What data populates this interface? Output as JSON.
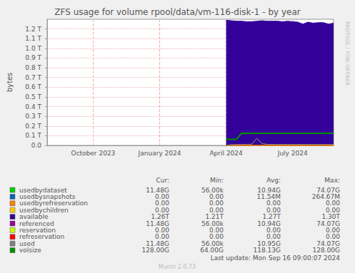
{
  "chart_data": {
    "type": "line",
    "title": "ZFS usage for volume rpool/data/vm-116-disk-1 - by year",
    "y_label": "bytes",
    "side_text": "RRDTOOL / TOBI OETIKER",
    "footer": "Last update: Mon Sep 16 09:00:07 2024",
    "version_text": "Munin 2.0.73",
    "stats_header": [
      "Cur:",
      "Min:",
      "Avg:",
      "Max:"
    ],
    "grid": true,
    "categories": [
      null,
      null,
      null,
      null,
      null,
      null,
      null,
      null,
      null,
      "October 2023",
      null,
      null,
      null,
      null,
      null,
      null,
      null,
      null,
      null,
      null,
      null,
      null,
      "January 2024",
      null,
      null,
      null,
      null,
      null,
      null,
      null,
      null,
      null,
      null,
      null,
      null,
      "April 2024",
      null,
      null,
      null,
      null,
      null,
      null,
      null,
      null,
      null,
      null,
      null,
      null,
      "July 2024",
      null,
      null,
      null,
      null,
      null,
      null,
      null,
      null
    ],
    "ylim": [
      0,
      1.3
    ],
    "yticks": [
      {
        "value": 0,
        "label": "0.0"
      },
      {
        "value": 0.1,
        "label": "0.1 T"
      },
      {
        "value": 0.2,
        "label": "0.2 T"
      },
      {
        "value": 0.3,
        "label": "0.3 T"
      },
      {
        "value": 0.4,
        "label": "0.4 T"
      },
      {
        "value": 0.5,
        "label": "0.5 T"
      },
      {
        "value": 0.6,
        "label": "0.6 T"
      },
      {
        "value": 0.7,
        "label": "0.7 T"
      },
      {
        "value": 0.8,
        "label": "0.8 T"
      },
      {
        "value": 0.9,
        "label": "0.9 T"
      },
      {
        "value": 1.0,
        "label": "1.0 T"
      },
      {
        "value": 1.1,
        "label": "1.1 T"
      },
      {
        "value": 1.2,
        "label": "1.2 T"
      }
    ],
    "series": [
      {
        "name": "usedbydataset",
        "color": "#00cc00",
        "type": "line",
        "stats": [
          "11.48G",
          "56.00k",
          "10.94G",
          "74.07G"
        ],
        "values": [
          null,
          null,
          null,
          null,
          null,
          null,
          null,
          null,
          null,
          null,
          null,
          null,
          null,
          null,
          null,
          null,
          null,
          null,
          null,
          null,
          null,
          null,
          null,
          null,
          null,
          null,
          null,
          null,
          null,
          null,
          null,
          null,
          null,
          null,
          null,
          0.0001,
          0.008,
          0.01,
          0.011,
          0.011,
          0.012,
          0.072,
          0.02,
          0.011,
          0.011,
          0.011,
          0.011,
          0.011,
          0.011,
          0.011,
          0.011,
          0.011,
          0.011,
          0.011,
          0.011,
          0.011,
          0.0112
        ]
      },
      {
        "name": "usedbysnapshots",
        "color": "#0066b3",
        "type": "line",
        "stats": [
          "0.00",
          "0.00",
          "11.54M",
          "264.67M"
        ],
        "values": [
          null,
          null,
          null,
          null,
          null,
          null,
          null,
          null,
          null,
          null,
          null,
          null,
          null,
          null,
          null,
          null,
          null,
          null,
          null,
          null,
          null,
          null,
          null,
          null,
          null,
          null,
          null,
          null,
          null,
          null,
          null,
          null,
          null,
          null,
          null,
          0,
          0,
          0,
          0,
          0,
          0,
          0.0003,
          0,
          0,
          0,
          0,
          0,
          0,
          0,
          0,
          0,
          0,
          0,
          0,
          0,
          0,
          0
        ]
      },
      {
        "name": "usedbyrefreservation",
        "color": "#ff8000",
        "type": "line",
        "stats": [
          "0.00",
          "0.00",
          "0.00",
          "0.00"
        ],
        "values": [
          null,
          null,
          null,
          null,
          null,
          null,
          null,
          null,
          null,
          null,
          null,
          null,
          null,
          null,
          null,
          null,
          null,
          null,
          null,
          null,
          null,
          null,
          null,
          null,
          null,
          null,
          null,
          null,
          null,
          null,
          null,
          null,
          null,
          null,
          null,
          0,
          0,
          0,
          0,
          0,
          0,
          0,
          0,
          0,
          0,
          0,
          0,
          0,
          0,
          0,
          0,
          0,
          0,
          0,
          0,
          0,
          0
        ]
      },
      {
        "name": "usedbychildren",
        "color": "#ffcc00",
        "type": "line",
        "stats": [
          "0.00",
          "0.00",
          "0.00",
          "0.00"
        ],
        "values": [
          null,
          null,
          null,
          null,
          null,
          null,
          null,
          null,
          null,
          null,
          null,
          null,
          null,
          null,
          null,
          null,
          null,
          null,
          null,
          null,
          null,
          null,
          null,
          null,
          null,
          null,
          null,
          null,
          null,
          null,
          null,
          null,
          null,
          null,
          null,
          0,
          0,
          0,
          0,
          0,
          0,
          0,
          0,
          0,
          0,
          0,
          0,
          0,
          0,
          0,
          0,
          0,
          0,
          0,
          0,
          0,
          0
        ]
      },
      {
        "name": "available",
        "color": "#330099",
        "type": "area",
        "stats": [
          "1.26T",
          "1.21T",
          "1.27T",
          "1.30T"
        ],
        "values": [
          null,
          null,
          null,
          null,
          null,
          null,
          null,
          null,
          null,
          null,
          null,
          null,
          null,
          null,
          null,
          null,
          null,
          null,
          null,
          null,
          null,
          null,
          null,
          null,
          null,
          null,
          null,
          null,
          null,
          null,
          null,
          null,
          null,
          null,
          null,
          1.29,
          1.285,
          1.28,
          1.28,
          1.275,
          1.275,
          1.28,
          1.285,
          1.28,
          1.28,
          1.28,
          1.275,
          1.28,
          1.275,
          1.27,
          1.25,
          1.27,
          1.26,
          1.265,
          1.265,
          1.25,
          1.26
        ]
      },
      {
        "name": "referenced",
        "color": "#990099",
        "type": "line",
        "stats": [
          "11.48G",
          "56.00k",
          "10.94G",
          "74.07G"
        ],
        "values": [
          null,
          null,
          null,
          null,
          null,
          null,
          null,
          null,
          null,
          null,
          null,
          null,
          null,
          null,
          null,
          null,
          null,
          null,
          null,
          null,
          null,
          null,
          null,
          null,
          null,
          null,
          null,
          null,
          null,
          null,
          null,
          null,
          null,
          null,
          null,
          0.0001,
          0.008,
          0.01,
          0.011,
          0.011,
          0.012,
          0.072,
          0.02,
          0.011,
          0.011,
          0.011,
          0.011,
          0.011,
          0.011,
          0.011,
          0.011,
          0.011,
          0.011,
          0.011,
          0.011,
          0.011,
          0.0112
        ]
      },
      {
        "name": "reservation",
        "color": "#ccff00",
        "type": "line",
        "stats": [
          "0.00",
          "0.00",
          "0.00",
          "0.00"
        ],
        "values": [
          null,
          null,
          null,
          null,
          null,
          null,
          null,
          null,
          null,
          null,
          null,
          null,
          null,
          null,
          null,
          null,
          null,
          null,
          null,
          null,
          null,
          null,
          null,
          null,
          null,
          null,
          null,
          null,
          null,
          null,
          null,
          null,
          null,
          null,
          null,
          0,
          0,
          0,
          0,
          0,
          0,
          0,
          0,
          0,
          0,
          0,
          0,
          0,
          0,
          0,
          0,
          0,
          0,
          0,
          0,
          0,
          0
        ]
      },
      {
        "name": "refreservation",
        "color": "#ff0000",
        "type": "line",
        "stats": [
          "0.00",
          "0.00",
          "0.00",
          "0.00"
        ],
        "values": [
          null,
          null,
          null,
          null,
          null,
          null,
          null,
          null,
          null,
          null,
          null,
          null,
          null,
          null,
          null,
          null,
          null,
          null,
          null,
          null,
          null,
          null,
          null,
          null,
          null,
          null,
          null,
          null,
          null,
          null,
          null,
          null,
          null,
          null,
          null,
          0,
          0,
          0,
          0,
          0,
          0,
          0,
          0,
          0,
          0,
          0,
          0,
          0,
          0,
          0,
          0,
          0,
          0,
          0,
          0,
          0,
          0
        ]
      },
      {
        "name": "used",
        "color": "#808080",
        "type": "line",
        "stats": [
          "11.48G",
          "56.00k",
          "10.95G",
          "74.07G"
        ],
        "values": [
          null,
          null,
          null,
          null,
          null,
          null,
          null,
          null,
          null,
          null,
          null,
          null,
          null,
          null,
          null,
          null,
          null,
          null,
          null,
          null,
          null,
          null,
          null,
          null,
          null,
          null,
          null,
          null,
          null,
          null,
          null,
          null,
          null,
          null,
          null,
          0.0001,
          0.008,
          0.01,
          0.011,
          0.011,
          0.012,
          0.072,
          0.02,
          0.011,
          0.011,
          0.011,
          0.011,
          0.011,
          0.011,
          0.011,
          0.011,
          0.011,
          0.011,
          0.011,
          0.011,
          0.011,
          0.0112
        ]
      },
      {
        "name": "volsize",
        "color": "#008f00",
        "type": "line",
        "stats": [
          "128.00G",
          "64.00G",
          "118.13G",
          "128.00G"
        ],
        "values": [
          null,
          null,
          null,
          null,
          null,
          null,
          null,
          null,
          null,
          null,
          null,
          null,
          null,
          null,
          null,
          null,
          null,
          null,
          null,
          null,
          null,
          null,
          null,
          null,
          null,
          null,
          null,
          null,
          null,
          null,
          null,
          null,
          null,
          null,
          null,
          0.0625,
          0.0625,
          0.0625,
          0.125,
          0.125,
          0.125,
          0.125,
          0.125,
          0.125,
          0.125,
          0.125,
          0.125,
          0.125,
          0.125,
          0.125,
          0.125,
          0.125,
          0.125,
          0.125,
          0.125,
          0.125,
          0.125
        ]
      }
    ]
  }
}
